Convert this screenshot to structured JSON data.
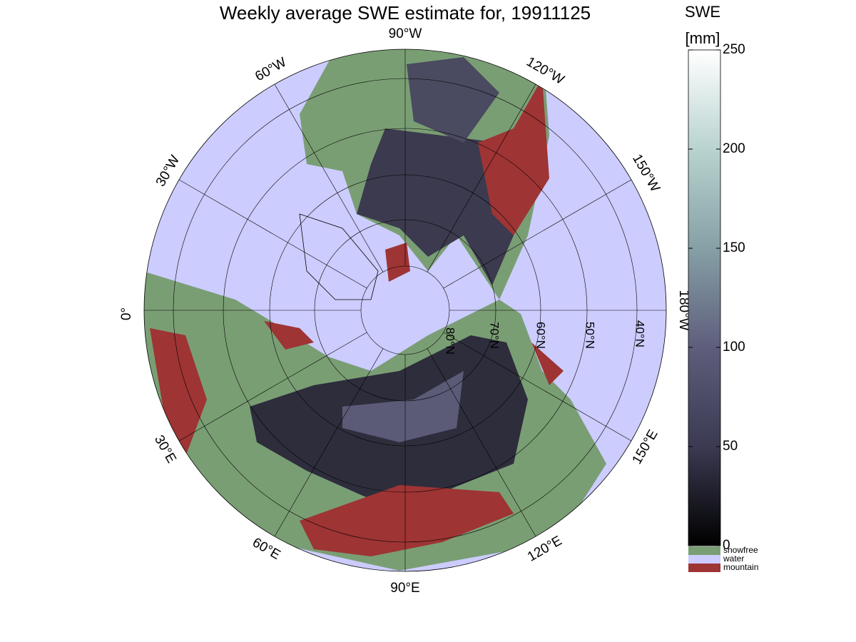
{
  "title": "Weekly average SWE estimate for, 19911125",
  "map": {
    "longitude_labels": [
      "90°W",
      "120°W",
      "150°W",
      "180°W",
      "150°E",
      "120°E",
      "90°E",
      "60°E",
      "30°E",
      "0°",
      "30°W",
      "60°W"
    ],
    "latitude_labels": [
      "80°N",
      "70°N",
      "60°N",
      "50°N",
      "40°N"
    ]
  },
  "colorbar": {
    "title": "SWE",
    "unit": "[mm]",
    "range": [
      0,
      250
    ],
    "ticks": [
      0,
      50,
      100,
      150,
      200,
      250
    ]
  },
  "legend": [
    {
      "label": "snowfree",
      "color": "#7a9e74"
    },
    {
      "label": "water",
      "color": "#ccccff"
    },
    {
      "label": "mountain",
      "color": "#9e3434"
    }
  ]
}
